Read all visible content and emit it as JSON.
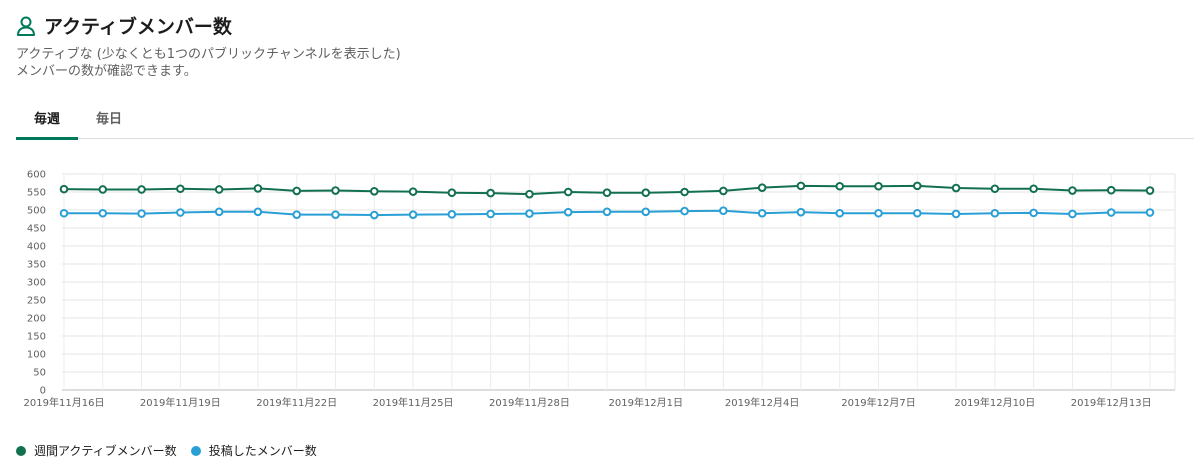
{
  "header": {
    "title": "アクティブメンバー数",
    "icon": "user-icon"
  },
  "description": [
    "アクティブな (少なくとも1つのパブリックチャンネルを表示した)",
    "メンバーの数が確認できます。"
  ],
  "tabs": [
    {
      "label": "毎週",
      "active": true
    },
    {
      "label": "毎日",
      "active": false
    }
  ],
  "colors": {
    "accent": "#007a5a",
    "weekly": "#12704f",
    "posted": "#2a9fd6"
  },
  "chart_data": {
    "type": "line",
    "x": [
      "2019年11月16日",
      "2019年11月17日",
      "2019年11月18日",
      "2019年11月19日",
      "2019年11月20日",
      "2019年11月21日",
      "2019年11月22日",
      "2019年11月23日",
      "2019年11月24日",
      "2019年11月25日",
      "2019年11月26日",
      "2019年11月27日",
      "2019年11月28日",
      "2019年11月29日",
      "2019年11月30日",
      "2019年12月1日",
      "2019年12月2日",
      "2019年12月3日",
      "2019年12月4日",
      "2019年12月5日",
      "2019年12月6日",
      "2019年12月7日",
      "2019年12月8日",
      "2019年12月9日",
      "2019年12月10日",
      "2019年12月11日",
      "2019年12月12日",
      "2019年12月13日",
      "2019年12月14日"
    ],
    "xtick_labels": [
      "2019年11月16日",
      "2019年11月19日",
      "2019年11月22日",
      "2019年11月25日",
      "2019年11月28日",
      "2019年12月1日",
      "2019年12月4日",
      "2019年12月7日",
      "2019年12月10日",
      "2019年12月13日"
    ],
    "yticks": [
      0,
      50,
      100,
      150,
      200,
      250,
      300,
      350,
      400,
      450,
      500,
      550,
      600
    ],
    "ylim": [
      0,
      600
    ],
    "grid": true,
    "legend_position": "bottom-left",
    "series": [
      {
        "name": "週間アクティブメンバー数",
        "color": "#12704f",
        "values": [
          558,
          557,
          557,
          559,
          557,
          560,
          553,
          554,
          552,
          551,
          548,
          547,
          544,
          550,
          548,
          548,
          550,
          553,
          562,
          567,
          566,
          566,
          567,
          561,
          559,
          559,
          554,
          555,
          554
        ]
      },
      {
        "name": "投稿したメンバー数",
        "color": "#2a9fd6",
        "values": [
          491,
          491,
          490,
          493,
          495,
          495,
          487,
          487,
          486,
          487,
          488,
          489,
          490,
          494,
          495,
          495,
          497,
          498,
          491,
          494,
          491,
          491,
          491,
          489,
          491,
          492,
          489,
          493,
          493
        ]
      }
    ]
  }
}
